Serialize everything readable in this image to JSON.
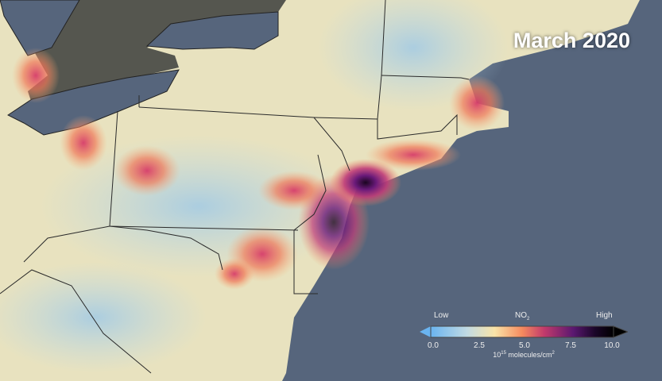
{
  "title": "March 2020",
  "legend": {
    "low_label": "Low",
    "high_label": "High",
    "variable": "NO",
    "variable_subscript": "2",
    "ticks": [
      "0.0",
      "2.5",
      "5.0",
      "7.5",
      "10.0"
    ],
    "unit_base": "10",
    "unit_exponent": "15",
    "unit_text": " molecules/cm",
    "unit_sup": "2",
    "colors": [
      "#6ab4f0",
      "#a9d0e8",
      "#f9e4a8",
      "#f58a5e",
      "#d63c6a",
      "#7a1a7a",
      "#2a0a3a",
      "#000000"
    ]
  },
  "colors": {
    "ocean": "#56657c",
    "no_data_land": "#55564f"
  }
}
